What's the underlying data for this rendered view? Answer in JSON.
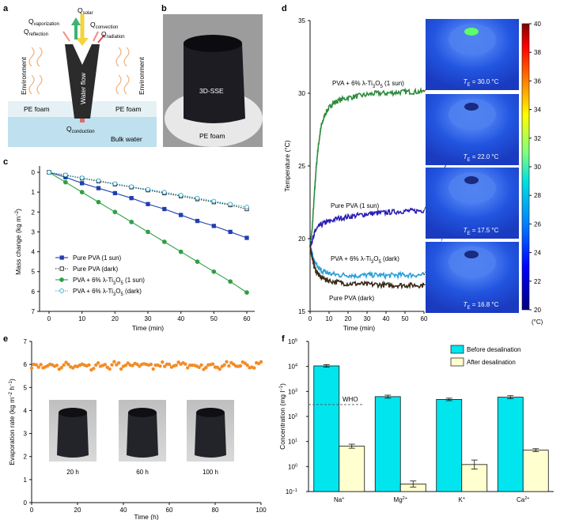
{
  "panel_labels": [
    "a",
    "b",
    "c",
    "d",
    "e",
    "f"
  ],
  "panel_a": {
    "q_solar": "Q",
    "q_solar_sub": "solar",
    "q_vaporization": "Q",
    "q_vaporization_sub": "vaporization",
    "q_reflection": "Q",
    "q_reflection_sub": "reflection",
    "q_convection": "Q",
    "q_convection_sub": "convection",
    "q_radiation": "Q",
    "q_radiation_sub": "radiation",
    "q_conduction": "Q",
    "q_conduction_sub": "conduction",
    "environment_left": "Environment",
    "environment_right": "Environment",
    "water_flow": "Water flow",
    "pe_foam_left": "PE foam",
    "pe_foam_right": "PE foam",
    "bulk_water": "Bulk water",
    "colors": {
      "water": "#bfe3f0",
      "foam": "#e8f2f7",
      "device": "#2b2b2b",
      "solar": "#f5d33c",
      "vapor": "#3cb371"
    }
  },
  "panel_b": {
    "device_label": "3D-SSE",
    "foam_label": "PE foam"
  },
  "photos_e": [
    "20 h",
    "60 h",
    "100 h"
  ],
  "thermal_images": [
    {
      "label": "T",
      "sub": "E",
      "value": " = 30.0 °C"
    },
    {
      "label": "T",
      "sub": "E",
      "value": " = 22.0 °C"
    },
    {
      "label": "T",
      "sub": "E",
      "value": " = 17.5 °C"
    },
    {
      "label": "T",
      "sub": "E",
      "value": " = 16.8 °C"
    }
  ],
  "colorbar": {
    "ticks": [
      "40",
      "38",
      "36",
      "34",
      "32",
      "30",
      "28",
      "26",
      "24",
      "22",
      "20"
    ],
    "unit": "(°C)"
  },
  "chart_data": [
    {
      "panel": "c",
      "type": "line",
      "xlabel": "Time (min)",
      "ylabel": "Mass change (kg m",
      "ylabel_sup": "−2",
      "ylabel_end": ")",
      "xlim": [
        0,
        60
      ],
      "ylim": [
        7,
        0
      ],
      "xticks": [
        "0",
        "10",
        "20",
        "30",
        "40",
        "50",
        "60"
      ],
      "yticks": [
        "0",
        "1",
        "2",
        "3",
        "4",
        "5",
        "6",
        "7"
      ],
      "x": [
        0,
        5,
        10,
        15,
        20,
        25,
        30,
        35,
        40,
        45,
        50,
        55,
        60
      ],
      "series": [
        {
          "name": "Pure PVA (1 sun)",
          "color": "#1f3fae",
          "marker": "square",
          "dash": false,
          "values": [
            0,
            0.25,
            0.55,
            0.8,
            1.05,
            1.3,
            1.6,
            1.85,
            2.15,
            2.45,
            2.7,
            3.0,
            3.3
          ]
        },
        {
          "name": "Pure PVA (dark)",
          "color": "#222222",
          "marker": "square-open",
          "dash": true,
          "values": [
            0,
            0.15,
            0.3,
            0.45,
            0.6,
            0.75,
            0.9,
            1.05,
            1.2,
            1.35,
            1.5,
            1.65,
            1.85
          ]
        },
        {
          "name": "PVA + 6% λ-Ti",
          "name_sub": "3",
          "name_mid": "O",
          "name_sub2": "5",
          "name_end": " (1 sun)",
          "color": "#2ea043",
          "marker": "circle",
          "dash": false,
          "values": [
            0,
            0.5,
            1.0,
            1.5,
            2.0,
            2.5,
            3.0,
            3.5,
            4.0,
            4.5,
            5.0,
            5.5,
            6.05
          ]
        },
        {
          "name": "PVA + 6% λ-Ti",
          "name_sub": "3",
          "name_mid": "O",
          "name_sub2": "5",
          "name_end": " (dark)",
          "color": "#2aa9c9",
          "marker": "circle-open",
          "dash": true,
          "values": [
            0,
            0.13,
            0.28,
            0.42,
            0.57,
            0.72,
            0.86,
            1.0,
            1.15,
            1.3,
            1.45,
            1.6,
            1.75
          ]
        }
      ],
      "legend_position": "bottom-left"
    },
    {
      "panel": "d",
      "type": "line",
      "xlabel": "Time (min)",
      "ylabel": "Temperature (°C)",
      "xlim": [
        0,
        60
      ],
      "ylim": [
        15,
        35
      ],
      "xticks": [
        "0",
        "10",
        "20",
        "30",
        "40",
        "50",
        "60"
      ],
      "yticks": [
        "15",
        "20",
        "25",
        "30",
        "35"
      ],
      "series": [
        {
          "name": "PVA + 6% λ-Ti",
          "name_sub": "3",
          "name_mid": "O",
          "name_sub2": "5",
          "name_end": " (1 sun)",
          "color": "#2e8b3e",
          "x": [
            0,
            1,
            2,
            3,
            4,
            5,
            6,
            8,
            10,
            12,
            15,
            20,
            25,
            30,
            35,
            40,
            45,
            50,
            55,
            60
          ],
          "values": [
            19.5,
            20.5,
            22.5,
            24.5,
            26.0,
            27.0,
            27.8,
            28.6,
            29.0,
            29.3,
            29.5,
            29.7,
            29.8,
            29.9,
            30.0,
            30.0,
            30.05,
            30.1,
            30.1,
            30.1
          ]
        },
        {
          "name": "Pure PVA (1 sun)",
          "color": "#2a1fb0",
          "x": [
            0,
            1,
            2,
            3,
            5,
            8,
            10,
            15,
            20,
            25,
            30,
            35,
            40,
            45,
            50,
            55,
            60
          ],
          "values": [
            19.5,
            19.8,
            20.3,
            20.6,
            20.9,
            21.1,
            21.2,
            21.4,
            21.5,
            21.6,
            21.7,
            21.75,
            21.8,
            21.85,
            21.9,
            21.9,
            21.95
          ]
        },
        {
          "name": "PVA + 6% λ-Ti",
          "name_sub": "3",
          "name_mid": "O",
          "name_sub2": "5",
          "name_end": " (dark)",
          "color": "#2aa0d8",
          "x": [
            0,
            1,
            2,
            3,
            5,
            8,
            10,
            15,
            20,
            25,
            30,
            35,
            40,
            45,
            50,
            55,
            60
          ],
          "values": [
            19.5,
            19.0,
            18.5,
            18.2,
            17.9,
            17.7,
            17.6,
            17.5,
            17.5,
            17.45,
            17.5,
            17.5,
            17.45,
            17.5,
            17.5,
            17.5,
            17.5
          ]
        },
        {
          "name": "Pure PVA (dark)",
          "color": "#3a2a1a",
          "x": [
            0,
            1,
            2,
            3,
            5,
            8,
            10,
            15,
            20,
            25,
            30,
            35,
            40,
            45,
            50,
            55,
            60
          ],
          "values": [
            19.5,
            18.8,
            18.2,
            17.8,
            17.4,
            17.2,
            17.1,
            17.0,
            16.9,
            16.9,
            16.85,
            16.85,
            16.8,
            16.8,
            16.8,
            16.8,
            16.8
          ]
        }
      ]
    },
    {
      "panel": "e",
      "type": "scatter",
      "xlabel": "Time (h)",
      "ylabel": "Evaporation rate (kg m",
      "ylabel_sup": "−2",
      "ylabel_mid": " h",
      "ylabel_sup2": "−1",
      "ylabel_end": ")",
      "xlim": [
        0,
        100
      ],
      "ylim": [
        0,
        7
      ],
      "xticks": [
        "0",
        "20",
        "40",
        "60",
        "80",
        "100"
      ],
      "yticks": [
        "0",
        "1",
        "2",
        "3",
        "4",
        "5",
        "6",
        "7"
      ],
      "color": "#f28c28",
      "mean_value": 5.95,
      "value_range": [
        5.75,
        6.15
      ]
    },
    {
      "panel": "f",
      "type": "bar",
      "xlabel": "",
      "ylabel": "Concentration (mg l",
      "ylabel_sup": "−1",
      "ylabel_end": ")",
      "yscale": "log",
      "ylim": [
        0.1,
        100000
      ],
      "yticks": [
        {
          "base": "10",
          "exp": "5"
        },
        {
          "base": "10",
          "exp": "4"
        },
        {
          "base": "10",
          "exp": "3"
        },
        {
          "base": "10",
          "exp": "2"
        },
        {
          "base": "10",
          "exp": "1"
        },
        {
          "base": "10",
          "exp": "0"
        },
        {
          "base": "10",
          "exp": "−1"
        }
      ],
      "categories": [
        {
          "base": "Na",
          "sup": "+"
        },
        {
          "base": "Mg",
          "sup": "2+"
        },
        {
          "base": "K",
          "sup": "+"
        },
        {
          "base": "Ca",
          "sup": "2+"
        }
      ],
      "series": [
        {
          "name": "Before desalination",
          "color": "#00e5ee",
          "values": [
            10500,
            620,
            480,
            590
          ],
          "err": [
            0.05,
            0.06,
            0.05,
            0.06
          ]
        },
        {
          "name": "After desalination",
          "color": "#ffffd0",
          "values": [
            6.5,
            0.2,
            1.2,
            4.5
          ],
          "err": [
            0.08,
            0.12,
            0.18,
            0.06
          ]
        }
      ],
      "reference_line": {
        "label": "WHO",
        "value": 300
      },
      "legend_position": "top-right"
    }
  ]
}
